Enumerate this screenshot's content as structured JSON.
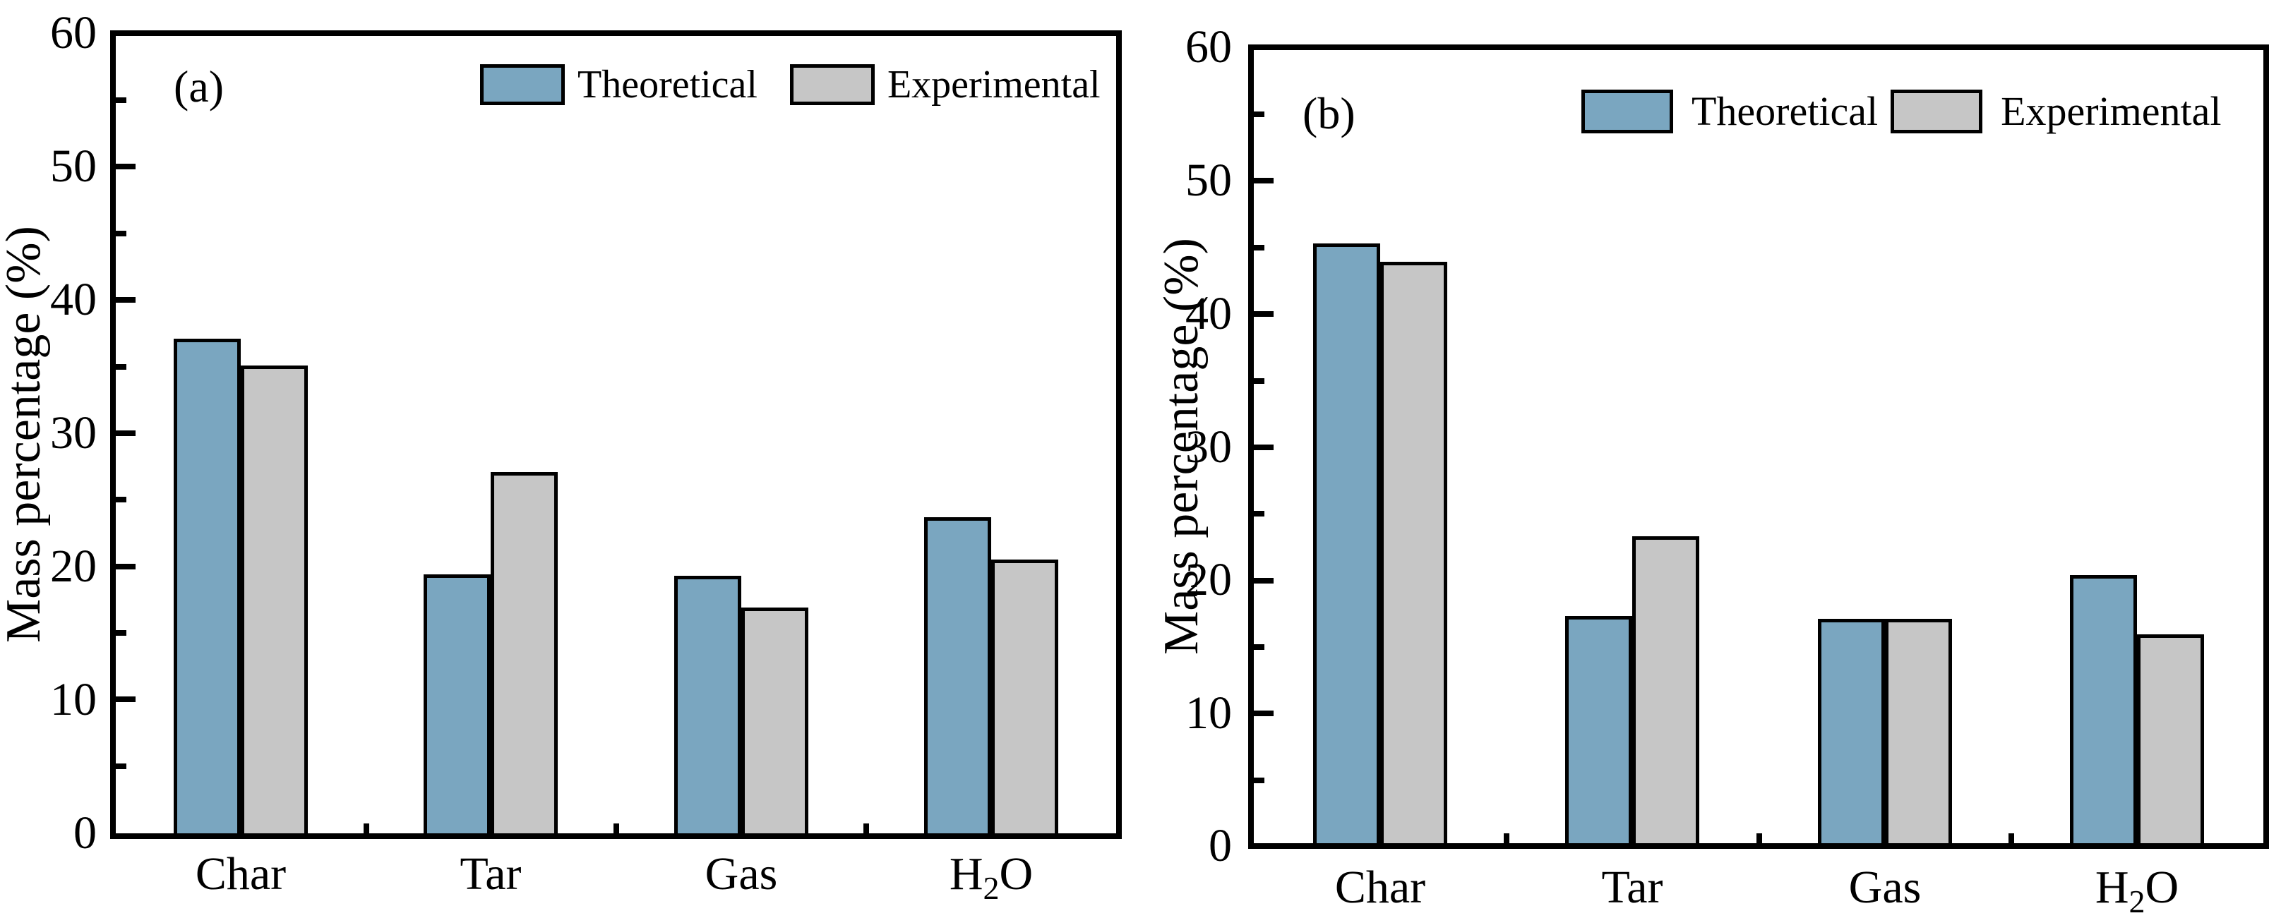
{
  "y_axis": {
    "label": "Mass percentage (%)",
    "tick_labels": [
      "60",
      "50",
      "40",
      "30",
      "20",
      "10",
      "0"
    ]
  },
  "categories": [
    {
      "pre": "Char",
      "sub": "",
      "post": ""
    },
    {
      "pre": "Tar",
      "sub": "",
      "post": ""
    },
    {
      "pre": "Gas",
      "sub": "",
      "post": ""
    },
    {
      "pre": "H",
      "sub": "2",
      "post": "O"
    }
  ],
  "colors": {
    "theoretical": "#7AA6C0",
    "experimental": "#C6C6C6",
    "axis": "#000000",
    "background": "#FFFFFF"
  },
  "chart_data": [
    {
      "type": "bar",
      "panel": "(a)",
      "title": "",
      "xlabel": "",
      "ylabel": "Mass percentage (%)",
      "ylim": [
        0,
        60
      ],
      "yticks": [
        0,
        10,
        20,
        30,
        40,
        50,
        60
      ],
      "ytick_minor_step": 5,
      "grid": false,
      "legend_position": "inside-top-center",
      "categories": [
        "Char",
        "Tar",
        "Gas",
        "H2O"
      ],
      "series": [
        {
          "name": "Theoretical",
          "color": "#7AA6C0",
          "values": [
            37.2,
            19.5,
            19.4,
            23.8
          ]
        },
        {
          "name": "Experimental",
          "color": "#C6C6C6",
          "values": [
            35.2,
            27.2,
            17.0,
            20.6
          ]
        }
      ]
    },
    {
      "type": "bar",
      "panel": "(b)",
      "title": "",
      "xlabel": "",
      "ylabel": "Mass percentage (%)",
      "ylim": [
        0,
        60
      ],
      "yticks": [
        0,
        10,
        20,
        30,
        40,
        50,
        60
      ],
      "ytick_minor_step": 5,
      "grid": false,
      "legend_position": "inside-top-right",
      "categories": [
        "Char",
        "Tar",
        "Gas",
        "H2O"
      ],
      "series": [
        {
          "name": "Theoretical",
          "color": "#7AA6C0",
          "values": [
            45.4,
            17.2,
            17.0,
            20.3
          ]
        },
        {
          "name": "Experimental",
          "color": "#C6C6C6",
          "values": [
            44.0,
            23.2,
            17.0,
            15.8
          ]
        }
      ]
    }
  ]
}
